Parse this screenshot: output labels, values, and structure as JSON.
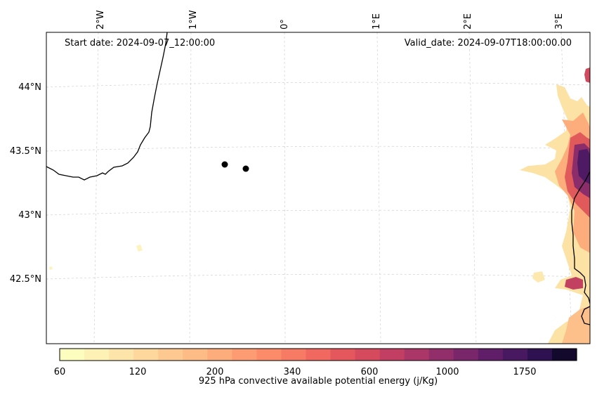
{
  "map": {
    "start_date_label": "Start date: 2024-09-07_12:00:00",
    "valid_date_label": "Valid_date: 2024-09-07T18:00:00.00",
    "longitude_labels": [
      "2°W",
      "1°W",
      "0°",
      "1°E",
      "2°E",
      "3°E"
    ],
    "latitude_labels": [
      "44°N",
      "43.5°N",
      "43°N",
      "42.5°N"
    ],
    "markers": 2
  },
  "colorbar": {
    "label": "925 hPa convective available potential energy (j/Kg)",
    "ticks": [
      "60",
      "120",
      "200",
      "340",
      "600",
      "1000",
      "1750"
    ],
    "colors": [
      "#fcfdbf",
      "#fdf1b5",
      "#fde4a8",
      "#fdd79c",
      "#fdc991",
      "#fdbb86",
      "#fdac7c",
      "#fd9c72",
      "#fb8b69",
      "#f77a64",
      "#f0685f",
      "#e4575c",
      "#d64a5d",
      "#c23f63",
      "#aa3767",
      "#922f6a",
      "#7a266b",
      "#611e68",
      "#481961",
      "#2d1151",
      "#12092c"
    ]
  },
  "colors": {
    "coastline": "#000000",
    "gridline": "#d0d0d0",
    "marker": "#000000"
  }
}
